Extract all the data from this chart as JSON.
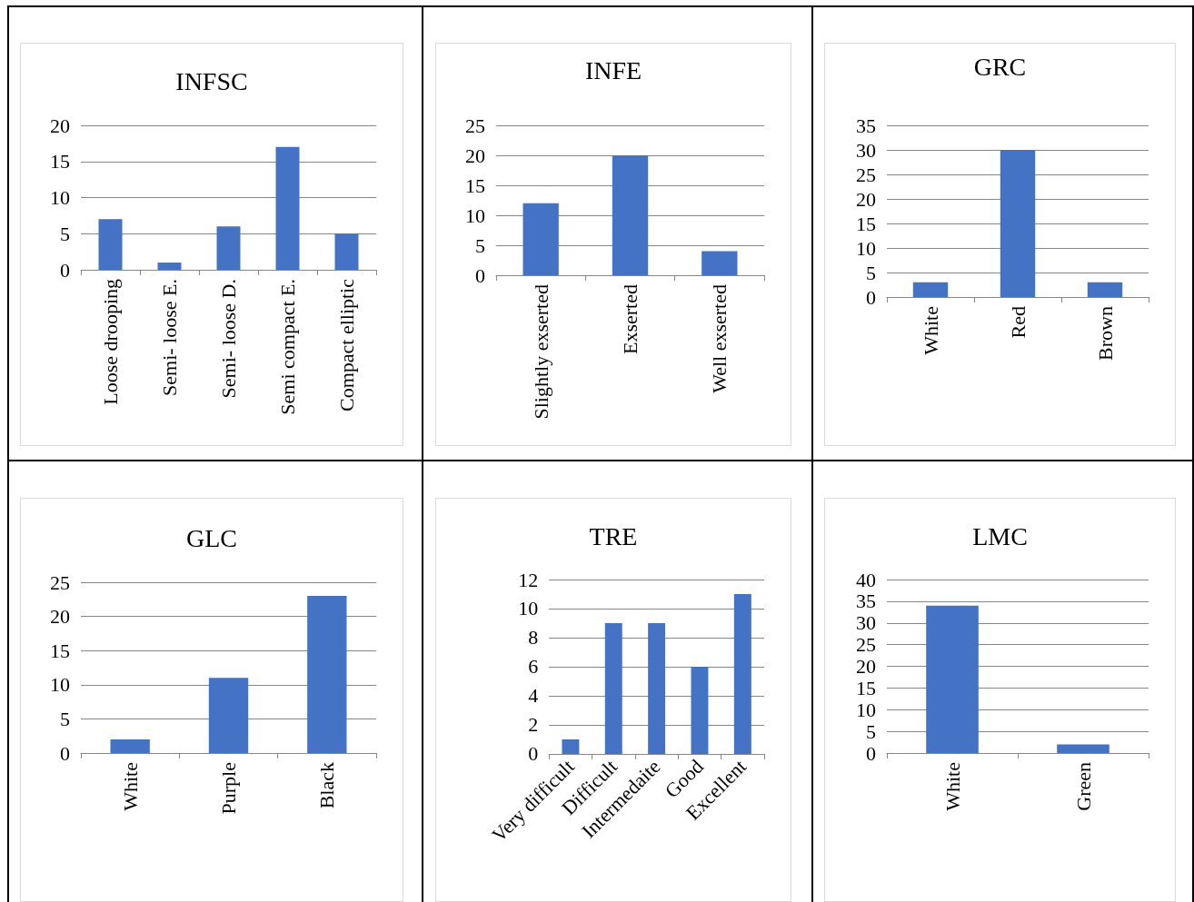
{
  "chart_data": [
    {
      "type": "bar",
      "title": "INFSC",
      "categories": [
        "Loose drooping",
        "Semi- loose E.",
        "Semi- loose D.",
        "Semi compact E.",
        "Compact elliptic"
      ],
      "values": [
        7,
        1,
        6,
        17,
        5
      ],
      "color": "#4472c4",
      "ylim": [
        0,
        20
      ],
      "yticks": [
        0,
        5,
        10,
        15,
        20
      ],
      "grid": "y"
    },
    {
      "type": "bar",
      "title": "INFE",
      "categories": [
        "Slightly exserted",
        "Exserted",
        "Well exserted"
      ],
      "values": [
        12,
        20,
        4
      ],
      "color": "#4472c4",
      "ylim": [
        0,
        25
      ],
      "yticks": [
        0,
        5,
        10,
        15,
        20,
        25
      ],
      "grid": "y"
    },
    {
      "type": "bar",
      "title": "GRC",
      "categories": [
        "White",
        "Red",
        "Brown"
      ],
      "values": [
        3,
        30,
        3
      ],
      "color": "#4472c4",
      "ylim": [
        0,
        35
      ],
      "yticks": [
        0,
        5,
        10,
        15,
        20,
        25,
        30,
        35
      ],
      "grid": "y"
    },
    {
      "type": "bar",
      "title": "GLC",
      "categories": [
        "White",
        "Purple",
        "Black"
      ],
      "values": [
        2,
        11,
        23
      ],
      "color": "#4472c4",
      "ylim": [
        0,
        25
      ],
      "yticks": [
        0,
        5,
        10,
        15,
        20,
        25
      ],
      "grid": "y"
    },
    {
      "type": "bar",
      "title": "TRE",
      "categories": [
        "Very difficult",
        "Difficult",
        "Intermedaite",
        "Good",
        "Excellent"
      ],
      "values": [
        1,
        9,
        9,
        6,
        11
      ],
      "color": "#4472c4",
      "ylim": [
        0,
        12
      ],
      "yticks": [
        0,
        2,
        4,
        6,
        8,
        10,
        12
      ],
      "grid": "y"
    },
    {
      "type": "bar",
      "title": "LMC",
      "categories": [
        "White",
        "Green"
      ],
      "values": [
        34,
        2
      ],
      "color": "#4472c4",
      "ylim": [
        0,
        40
      ],
      "yticks": [
        0,
        5,
        10,
        15,
        20,
        25,
        30,
        35,
        40
      ],
      "grid": "y"
    }
  ]
}
